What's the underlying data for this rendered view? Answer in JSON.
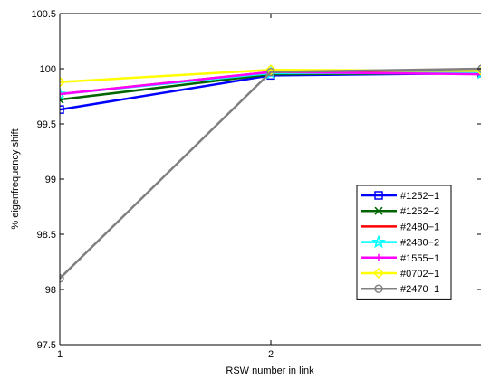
{
  "chart_data": {
    "type": "line",
    "xlabel": "RSW number in link",
    "ylabel": "% eigenfrequency shift",
    "x": [
      1,
      2,
      3
    ],
    "x_ticks": [
      1,
      2
    ],
    "x_tick_labels": [
      "1",
      "2"
    ],
    "xlim": [
      1,
      3
    ],
    "y_ticks": [
      97.5,
      98,
      98.5,
      99,
      99.5,
      100,
      100.5
    ],
    "y_tick_labels": [
      "97.5",
      "98",
      "98.5",
      "99",
      "99.5",
      "100",
      "100.5"
    ],
    "ylim": [
      97.5,
      100.5
    ],
    "grid": false,
    "legend_position": "right",
    "series": [
      {
        "name": "#1252−1",
        "color": "#0000ff",
        "marker": "square",
        "values": [
          99.63,
          99.94,
          99.96
        ]
      },
      {
        "name": "#1252−2",
        "color": "#006400",
        "marker": "x",
        "values": [
          99.72,
          99.95,
          99.96
        ]
      },
      {
        "name": "#2480−1",
        "color": "#ff0000",
        "marker": "none",
        "values": [
          99.77,
          99.97,
          99.96
        ]
      },
      {
        "name": "#2480−2",
        "color": "#00ffff",
        "marker": "star",
        "values": [
          99.77,
          99.96,
          99.96
        ]
      },
      {
        "name": "#1555−1",
        "color": "#ff00ff",
        "marker": "plus",
        "values": [
          99.77,
          99.97,
          99.95
        ]
      },
      {
        "name": "#0702−1",
        "color": "#ffff00",
        "marker": "diamond",
        "values": [
          99.88,
          99.99,
          99.98
        ]
      },
      {
        "name": "#2470−1",
        "color": "#808080",
        "marker": "circle",
        "values": [
          98.1,
          99.97,
          100.0
        ]
      }
    ]
  }
}
